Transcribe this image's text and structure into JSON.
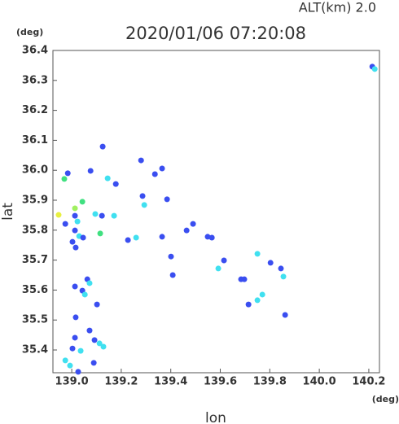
{
  "chart_data": {
    "type": "scatter",
    "title": "2020/01/06 07:20:08",
    "altitude_label": "ALT(km)  2.0",
    "y_unit": "(deg)",
    "x_unit": "(deg)",
    "xlabel": "lon",
    "ylabel": "lat",
    "xlim": [
      138.924,
      140.243
    ],
    "ylim": [
      35.324,
      36.4
    ],
    "xticks": [
      {
        "value": 139,
        "label": "139.0"
      },
      139.2,
      139.4,
      139.6,
      139.8,
      {
        "value": 140,
        "label": "140.0"
      },
      140.2
    ],
    "yticks": [
      35.4,
      35.5,
      35.6,
      35.7,
      35.8,
      35.9,
      {
        "value": 36,
        "label": "36.0"
      },
      36.1,
      36.2,
      36.3,
      36.4
    ],
    "grid": false,
    "x": [
      140.214,
      140.224,
      138.97,
      138.984,
      139.076,
      139.125,
      139.145,
      139.178,
      139.28,
      139.336,
      139.365,
      139.286,
      139.293,
      139.385,
      139.043,
      139.013,
      138.947,
      139.013,
      139.023,
      138.974,
      139.013,
      139.03,
      139.046,
      139.003,
      139.016,
      139.095,
      139.122,
      139.171,
      139.115,
      139.227,
      139.26,
      139.365,
      139.549,
      139.566,
      139.464,
      139.49,
      139.401,
      139.408,
      139.063,
      139.013,
      139.043,
      139.053,
      139.072,
      139.102,
      139.016,
      139.072,
      139.092,
      139.112,
      139.128,
      139.013,
      139.003,
      139.036,
      139.089,
      138.974,
      138.993,
      139.026,
      139.615,
      139.684,
      139.697,
      139.714,
      139.75,
      139.77,
      139.75,
      139.803,
      139.845,
      139.855,
      139.862,
      139.592
    ],
    "y": [
      36.346,
      36.338,
      35.971,
      35.99,
      35.998,
      36.079,
      35.973,
      35.954,
      36.033,
      35.987,
      36.006,
      35.914,
      35.884,
      35.903,
      35.895,
      35.873,
      35.851,
      35.848,
      35.829,
      35.821,
      35.799,
      35.78,
      35.775,
      35.761,
      35.742,
      35.854,
      35.848,
      35.848,
      35.789,
      35.767,
      35.775,
      35.778,
      35.778,
      35.775,
      35.799,
      35.821,
      35.712,
      35.65,
      35.636,
      35.612,
      35.598,
      35.585,
      35.623,
      35.552,
      35.509,
      35.465,
      35.433,
      35.422,
      35.411,
      35.441,
      35.405,
      35.397,
      35.357,
      35.365,
      35.348,
      35.327,
      35.699,
      35.636,
      35.636,
      35.552,
      35.566,
      35.585,
      35.721,
      35.691,
      35.672,
      35.645,
      35.517,
      35.672
    ],
    "colors": [
      "#3a4ef0",
      "#40e0f0",
      "#40e080",
      "#3a4ef0",
      "#3a4ef0",
      "#3a4ef0",
      "#40e0f0",
      "#3a4ef0",
      "#3a4ef0",
      "#3a4ef0",
      "#3a4ef0",
      "#3a4ef0",
      "#40e0f0",
      "#3a4ef0",
      "#40e080",
      "#a0f060",
      "#e8f040",
      "#3a4ef0",
      "#40e0f0",
      "#3a4ef0",
      "#3a4ef0",
      "#40e0f0",
      "#3a4ef0",
      "#3a4ef0",
      "#3a4ef0",
      "#40e0f0",
      "#3a4ef0",
      "#40e0f0",
      "#40e080",
      "#3a4ef0",
      "#40e0f0",
      "#3a4ef0",
      "#3a4ef0",
      "#3a4ef0",
      "#3a4ef0",
      "#3a4ef0",
      "#3a4ef0",
      "#3a4ef0",
      "#3a4ef0",
      "#3a4ef0",
      "#3a4ef0",
      "#40e0f0",
      "#40e0f0",
      "#3a4ef0",
      "#3a4ef0",
      "#3a4ef0",
      "#3a4ef0",
      "#40e0f0",
      "#40e0f0",
      "#3a4ef0",
      "#3a4ef0",
      "#40e0f0",
      "#3a4ef0",
      "#40e0f0",
      "#40e0f0",
      "#3a4ef0",
      "#3a4ef0",
      "#3a4ef0",
      "#3a4ef0",
      "#3a4ef0",
      "#40e0f0",
      "#40e0f0",
      "#40e0f0",
      "#3a4ef0",
      "#3a4ef0",
      "#40e0f0",
      "#3a4ef0",
      "#40e0f0"
    ]
  }
}
